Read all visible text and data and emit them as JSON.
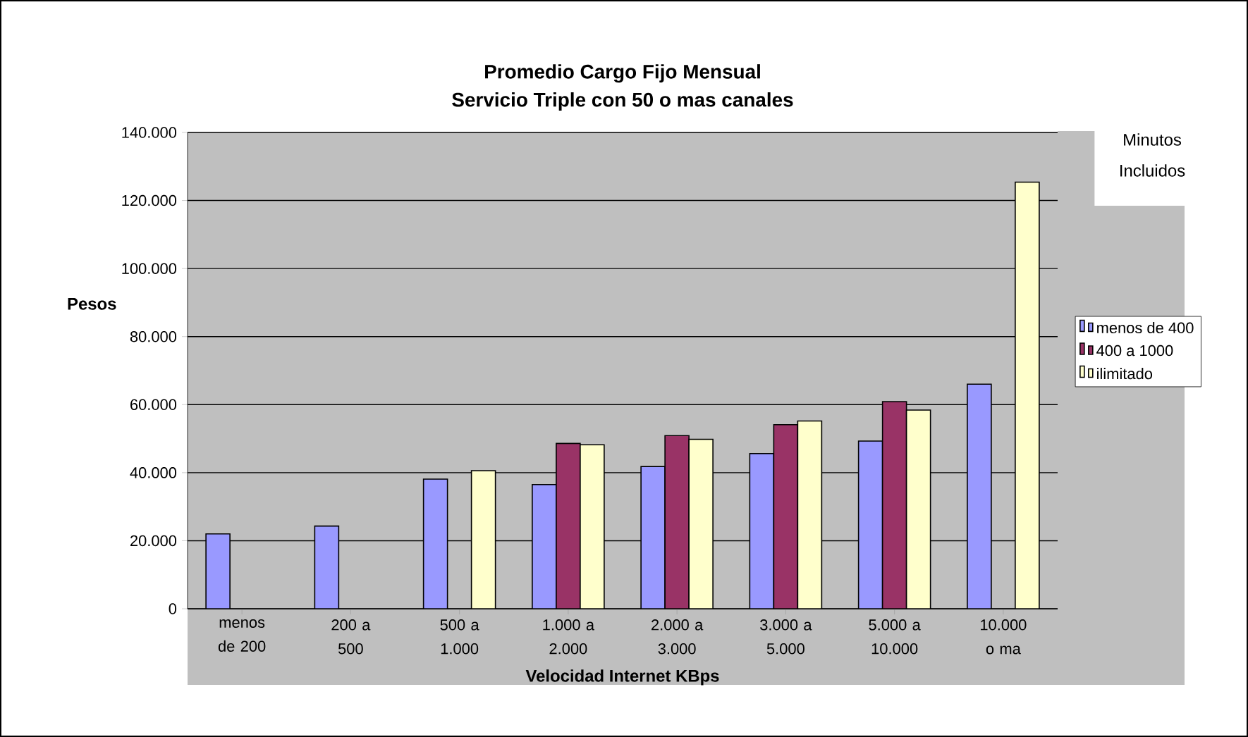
{
  "chart_data": {
    "type": "bar",
    "title": "Promedio Cargo Fijo Mensual\nServicio Triple con 50 o mas canales",
    "xlabel": "Velocidad Internet KBps",
    "ylabel": "Pesos",
    "legend_title": "Minutos Incluidos",
    "categories": [
      "menos de 200",
      "200 a 500",
      "500 a 1.000",
      "1.000 a 2.000",
      "2.000 a 3.000",
      "3.000 a 5.000",
      "5.000 a 10.000",
      "10.000 o ma"
    ],
    "series": [
      {
        "name": "menos de 400",
        "color": "#9999ff",
        "values": [
          22000,
          24300,
          38100,
          36500,
          41800,
          45600,
          49300,
          66000
        ]
      },
      {
        "name": "400 a 1000",
        "color": "#993366",
        "values": [
          null,
          null,
          null,
          48600,
          50900,
          54100,
          60900,
          null
        ]
      },
      {
        "name": "ilimitado",
        "color": "#ffffcc",
        "values": [
          null,
          null,
          40600,
          48200,
          49800,
          55200,
          58400,
          125400
        ]
      }
    ],
    "ylim": [
      0,
      140000
    ],
    "yticks": [
      {
        "value": 0,
        "label": "0"
      },
      {
        "value": 20000,
        "label": "20.000"
      },
      {
        "value": 40000,
        "label": "40.000"
      },
      {
        "value": 60000,
        "label": "60.000"
      },
      {
        "value": 80000,
        "label": "80.000"
      },
      {
        "value": 100000,
        "label": "100.000"
      },
      {
        "value": 120000,
        "label": "120.000"
      },
      {
        "value": 140000,
        "label": "140.000"
      }
    ],
    "grid": "y",
    "legend": "right"
  }
}
